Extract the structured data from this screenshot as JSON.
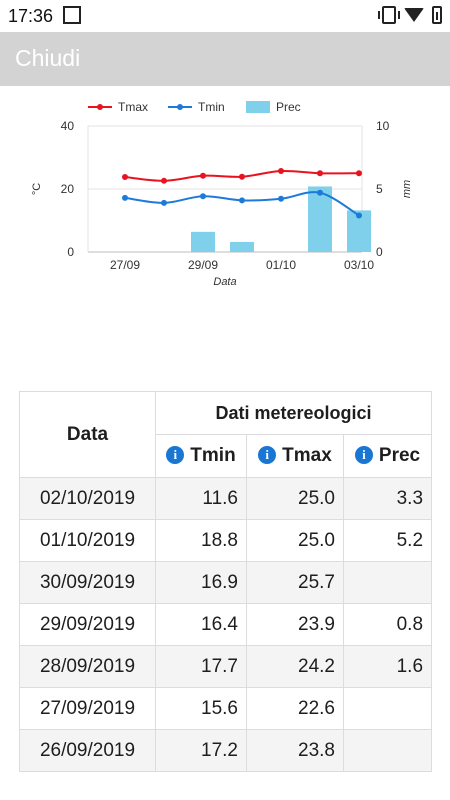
{
  "status": {
    "time": "17:36"
  },
  "appbar": {
    "title": "Chiudi"
  },
  "colors": {
    "tmax": "#e8131e",
    "tmin": "#1e7ad8",
    "prec": "#7fd0ea",
    "appbar": "#d3d3d3"
  },
  "chart_data": {
    "type": "line+bar",
    "legend": [
      "Tmax",
      "Tmin",
      "Prec"
    ],
    "x_label": "Data",
    "left_axis_label": "°C",
    "right_axis_label": "mm",
    "x_ticks": [
      "27/09",
      "29/09",
      "01/10",
      "03/10"
    ],
    "left_ticks": [
      "0",
      "20",
      "40"
    ],
    "right_ticks": [
      "0",
      "5",
      "10"
    ],
    "left_range": [
      0,
      40
    ],
    "right_range": [
      0,
      10
    ],
    "dates": [
      "26/09",
      "27/09",
      "28/09",
      "29/09",
      "30/09",
      "01/10",
      "02/10"
    ],
    "tmax": [
      23.8,
      22.6,
      24.2,
      23.9,
      25.7,
      25.0,
      25.0
    ],
    "tmin": [
      17.2,
      15.6,
      17.7,
      16.4,
      16.9,
      18.8,
      11.6
    ],
    "prec": [
      null,
      null,
      1.6,
      0.8,
      null,
      5.2,
      3.3
    ]
  },
  "table": {
    "header_date": "Data",
    "header_group": "Dati metereologici",
    "col_tmin": "Tmin",
    "col_tmax": "Tmax",
    "col_prec": "Prec",
    "rows": [
      {
        "date": "02/10/2019",
        "tmin": "11.6",
        "tmax": "25.0",
        "prec": "3.3"
      },
      {
        "date": "01/10/2019",
        "tmin": "18.8",
        "tmax": "25.0",
        "prec": "5.2"
      },
      {
        "date": "30/09/2019",
        "tmin": "16.9",
        "tmax": "25.7",
        "prec": ""
      },
      {
        "date": "29/09/2019",
        "tmin": "16.4",
        "tmax": "23.9",
        "prec": "0.8"
      },
      {
        "date": "28/09/2019",
        "tmin": "17.7",
        "tmax": "24.2",
        "prec": "1.6"
      },
      {
        "date": "27/09/2019",
        "tmin": "15.6",
        "tmax": "22.6",
        "prec": ""
      },
      {
        "date": "26/09/2019",
        "tmin": "17.2",
        "tmax": "23.8",
        "prec": ""
      }
    ]
  }
}
